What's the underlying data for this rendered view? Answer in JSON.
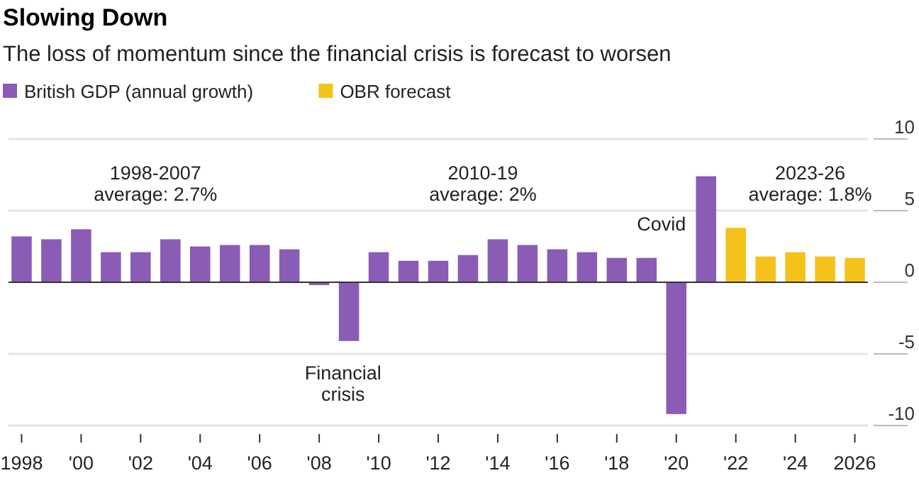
{
  "chart_data": {
    "type": "bar",
    "title": "Slowing Down",
    "subtitle": "The loss of momentum since the financial crisis is forecast to worsen",
    "categories": [
      "1998",
      null,
      "'00",
      null,
      "'02",
      null,
      "'04",
      null,
      "'06",
      null,
      "'08",
      null,
      "'10",
      null,
      "'12",
      null,
      "'14",
      null,
      "'16",
      null,
      "'18",
      null,
      "'20",
      null,
      "'22",
      null,
      "'24",
      null,
      "2026"
    ],
    "series": [
      {
        "name": "British GDP (annual growth)",
        "color": "#8a5cb5",
        "values": [
          3.2,
          3.0,
          3.7,
          2.1,
          2.1,
          3.0,
          2.5,
          2.6,
          2.6,
          2.3,
          -0.2,
          -4.1,
          2.1,
          1.5,
          1.5,
          1.9,
          3.0,
          2.6,
          2.3,
          2.1,
          1.7,
          1.7,
          -9.2,
          7.4,
          null,
          null,
          null,
          null,
          null
        ]
      },
      {
        "name": "OBR forecast",
        "color": "#f5c21b",
        "values": [
          null,
          null,
          null,
          null,
          null,
          null,
          null,
          null,
          null,
          null,
          null,
          null,
          null,
          null,
          null,
          null,
          null,
          null,
          null,
          null,
          null,
          null,
          null,
          null,
          3.8,
          1.8,
          2.1,
          1.8,
          1.7
        ]
      }
    ],
    "ylim": [
      -10,
      10
    ],
    "yticks": [
      10,
      5,
      0,
      -5,
      -10
    ],
    "grid": "y",
    "legend": "top left",
    "annotations": [
      "1998-2007\naverage: 2.7%",
      "Financial\ncrisis",
      "2010-19\naverage: 2%",
      "Covid",
      "2023-26\naverage: 1.8%"
    ]
  }
}
